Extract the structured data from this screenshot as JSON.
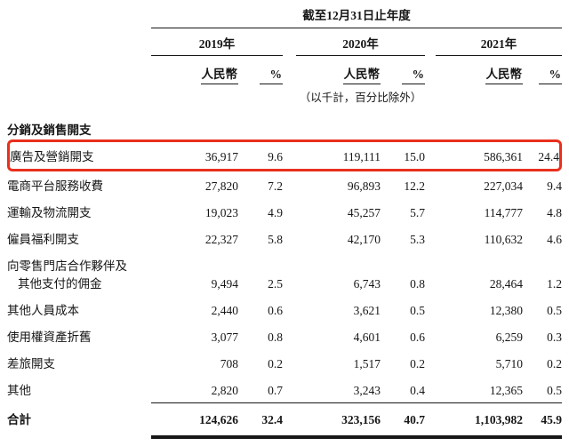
{
  "colors": {
    "highlight_red": "#e8301d",
    "text": "#161616",
    "background": "#ffffff"
  },
  "table": {
    "period_header": "截至12月31日止年度",
    "years": [
      "2019年",
      "2020年",
      "2021年"
    ],
    "headers": {
      "rmb": "人民幣",
      "pct": "%"
    },
    "note": "（以千計，百分比除外）",
    "section": "分銷及銷售開支",
    "rows": [
      {
        "label": "廣告及營銷開支",
        "highlighted": true,
        "v": [
          "36,917",
          "9.6",
          "119,111",
          "15.0",
          "586,361",
          "24.4"
        ]
      },
      {
        "label": "電商平台服務收費",
        "highlighted": false,
        "v": [
          "27,820",
          "7.2",
          "96,893",
          "12.2",
          "227,034",
          "9.4"
        ]
      },
      {
        "label": "運輸及物流開支",
        "highlighted": false,
        "v": [
          "19,023",
          "4.9",
          "45,257",
          "5.7",
          "114,777",
          "4.8"
        ]
      },
      {
        "label": "僱員福利開支",
        "highlighted": false,
        "v": [
          "22,327",
          "5.8",
          "42,170",
          "5.3",
          "110,632",
          "4.6"
        ]
      },
      {
        "label1": "向零售門店合作夥伴及",
        "label2": "其他支付的佣金",
        "highlighted": false,
        "v": [
          "9,494",
          "2.5",
          "6,743",
          "0.8",
          "28,464",
          "1.2"
        ]
      },
      {
        "label": "其他人員成本",
        "highlighted": false,
        "v": [
          "2,440",
          "0.6",
          "3,621",
          "0.5",
          "12,380",
          "0.5"
        ]
      },
      {
        "label": "使用權資產折舊",
        "highlighted": false,
        "v": [
          "3,077",
          "0.8",
          "4,601",
          "0.6",
          "6,259",
          "0.3"
        ]
      },
      {
        "label": "差旅開支",
        "highlighted": false,
        "v": [
          "708",
          "0.2",
          "1,517",
          "0.2",
          "5,710",
          "0.2"
        ]
      },
      {
        "label": "其他",
        "highlighted": false,
        "v": [
          "2,820",
          "0.7",
          "3,243",
          "0.4",
          "12,365",
          "0.5"
        ]
      }
    ],
    "total": {
      "label": "合計",
      "v": [
        "124,626",
        "32.4",
        "323,156",
        "40.7",
        "1,103,982",
        "45.9"
      ]
    }
  }
}
